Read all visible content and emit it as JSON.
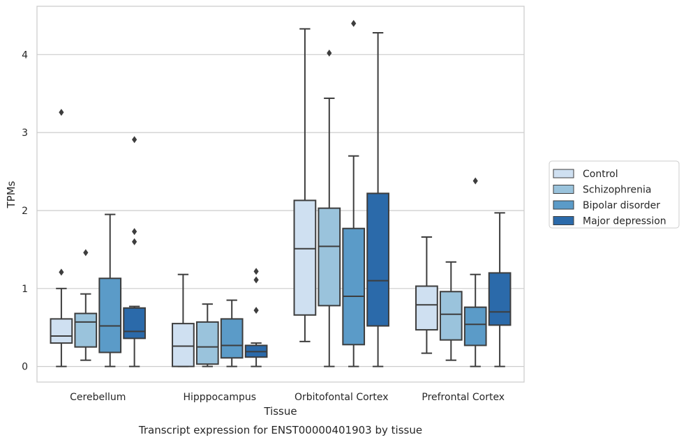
{
  "chart_data": {
    "type": "boxplot",
    "xlabel": "Tissue",
    "ylabel": "TPMs",
    "caption": "Transcript expression for ENST00000401903 by tissue",
    "ylim": [
      -0.2,
      4.62
    ],
    "yticks": [
      0,
      1,
      2,
      3,
      4
    ],
    "grid": "horizontal",
    "legend_position": "right",
    "categories": [
      "Cerebellum",
      "Hipppocampus",
      "Orbitofontal Cortex",
      "Prefrontal Cortex"
    ],
    "series": [
      {
        "name": "Control",
        "color": "#cfe0f1",
        "boxes": [
          {
            "whisker_low": 0.0,
            "q1": 0.3,
            "median": 0.39,
            "q3": 0.61,
            "whisker_high": 1.0,
            "outliers": [
              1.21,
              3.26
            ]
          },
          {
            "whisker_low": 0.0,
            "q1": 0.0,
            "median": 0.26,
            "q3": 0.55,
            "whisker_high": 1.18,
            "outliers": []
          },
          {
            "whisker_low": 0.32,
            "q1": 0.66,
            "median": 1.51,
            "q3": 2.13,
            "whisker_high": 4.33,
            "outliers": []
          },
          {
            "whisker_low": 0.17,
            "q1": 0.47,
            "median": 0.79,
            "q3": 1.03,
            "whisker_high": 1.66,
            "outliers": []
          }
        ]
      },
      {
        "name": "Schizophrenia",
        "color": "#9ac3dc",
        "boxes": [
          {
            "whisker_low": 0.08,
            "q1": 0.25,
            "median": 0.57,
            "q3": 0.68,
            "whisker_high": 0.93,
            "outliers": [
              1.46
            ]
          },
          {
            "whisker_low": 0.0,
            "q1": 0.03,
            "median": 0.25,
            "q3": 0.57,
            "whisker_high": 0.8,
            "outliers": []
          },
          {
            "whisker_low": 0.0,
            "q1": 0.78,
            "median": 1.54,
            "q3": 2.03,
            "whisker_high": 3.44,
            "outliers": [
              4.02
            ]
          },
          {
            "whisker_low": 0.08,
            "q1": 0.34,
            "median": 0.67,
            "q3": 0.96,
            "whisker_high": 1.34,
            "outliers": []
          }
        ]
      },
      {
        "name": "Bipolar disorder",
        "color": "#5b9bc8",
        "boxes": [
          {
            "whisker_low": 0.0,
            "q1": 0.18,
            "median": 0.52,
            "q3": 1.13,
            "whisker_high": 1.95,
            "outliers": []
          },
          {
            "whisker_low": 0.0,
            "q1": 0.11,
            "median": 0.27,
            "q3": 0.61,
            "whisker_high": 0.85,
            "outliers": []
          },
          {
            "whisker_low": 0.0,
            "q1": 0.28,
            "median": 0.9,
            "q3": 1.77,
            "whisker_high": 2.7,
            "outliers": [
              4.4
            ]
          },
          {
            "whisker_low": 0.0,
            "q1": 0.27,
            "median": 0.54,
            "q3": 0.76,
            "whisker_high": 1.18,
            "outliers": [
              2.38
            ]
          }
        ]
      },
      {
        "name": "Major depression",
        "color": "#2b6aaa",
        "boxes": [
          {
            "whisker_low": 0.0,
            "q1": 0.36,
            "median": 0.45,
            "q3": 0.75,
            "whisker_high": 0.77,
            "outliers": [
              1.6,
              1.73,
              2.91
            ]
          },
          {
            "whisker_low": 0.0,
            "q1": 0.12,
            "median": 0.19,
            "q3": 0.27,
            "whisker_high": 0.3,
            "outliers": [
              0.72,
              1.11,
              1.22
            ]
          },
          {
            "whisker_low": 0.0,
            "q1": 0.52,
            "median": 1.1,
            "q3": 2.22,
            "whisker_high": 4.28,
            "outliers": []
          },
          {
            "whisker_low": 0.0,
            "q1": 0.53,
            "median": 0.7,
            "q3": 1.2,
            "whisker_high": 1.97,
            "outliers": []
          }
        ]
      }
    ]
  }
}
